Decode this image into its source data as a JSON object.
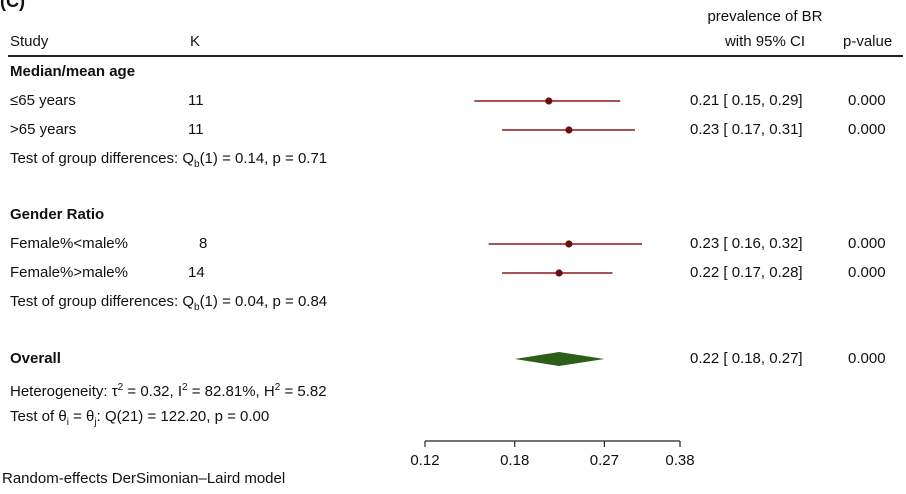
{
  "panel_label": "(C)",
  "header": {
    "study": "Study",
    "k": "K",
    "estimate_line1": "prevalence of BR",
    "estimate_line2": "with 95% CI",
    "pvalue": "p-value"
  },
  "groups": [
    {
      "title": "Median/mean age",
      "rows": [
        {
          "label": "≤65 years",
          "k": "11",
          "ci_text": "0.21 [ 0.15,  0.29]",
          "p": "0.000"
        },
        {
          "label": ">65 years",
          "k": "11",
          "ci_text": "0.23 [ 0.17,  0.31]",
          "p": "0.000"
        }
      ],
      "test_prefix": "Test of group differences: Q",
      "test_sub": "b",
      "test_suffix": "(1) = 0.14, p = 0.71"
    },
    {
      "title": "Gender Ratio",
      "rows": [
        {
          "label": "Female%<male%",
          "k": "8",
          "ci_text": "0.23 [ 0.16,  0.32]",
          "p": "0.000"
        },
        {
          "label": "Female%>male%",
          "k": "14",
          "ci_text": "0.22 [ 0.17,  0.28]",
          "p": "0.000"
        }
      ],
      "test_prefix": "Test of group differences: Q",
      "test_sub": "b",
      "test_suffix": "(1) = 0.04, p = 0.84"
    }
  ],
  "overall": {
    "title": "Overall",
    "ci_text": "0.22 [ 0.18,  0.27]",
    "p": "0.000",
    "heterogeneity": {
      "p1": "Heterogeneity: τ",
      "s1": "2",
      "p2": " = 0.32, I",
      "s2": "2",
      "p3": " = 82.81%, H",
      "s3": "2",
      "p4": " = 5.82"
    },
    "theta_test": {
      "p1": "Test of θ",
      "s1": "i",
      "p2": " = θ",
      "s2": "j",
      "p3": ": Q(21) = 122.20, p = 0.00"
    }
  },
  "footnote": "Random-effects DerSimonian–Laird model",
  "colors": {
    "ci": "#8b1a1a",
    "point": "#6b0f0f",
    "diamond": "#2d5e1a",
    "axis": "#222222"
  },
  "chart_data": {
    "type": "forest",
    "x_scale": "log",
    "xlim": [
      0.12,
      0.38
    ],
    "x_ticks": [
      "0.12",
      "0.18",
      "0.27",
      "0.38"
    ],
    "x_tick_values": [
      0.12,
      0.18,
      0.27,
      0.38
    ],
    "studies": [
      {
        "group": "Median/mean age",
        "label": "≤65 years",
        "k": 11,
        "estimate": 0.21,
        "ci_low": 0.15,
        "ci_high": 0.29
      },
      {
        "group": "Median/mean age",
        "label": ">65 years",
        "k": 11,
        "estimate": 0.23,
        "ci_low": 0.17,
        "ci_high": 0.31
      },
      {
        "group": "Gender Ratio",
        "label": "Female%<male%",
        "k": 8,
        "estimate": 0.23,
        "ci_low": 0.16,
        "ci_high": 0.32
      },
      {
        "group": "Gender Ratio",
        "label": "Female%>male%",
        "k": 14,
        "estimate": 0.22,
        "ci_low": 0.17,
        "ci_high": 0.28
      }
    ],
    "overall": {
      "estimate": 0.22,
      "ci_low": 0.18,
      "ci_high": 0.27
    }
  }
}
